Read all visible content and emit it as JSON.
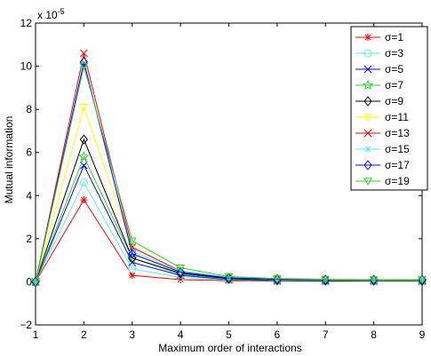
{
  "chart_data": {
    "type": "line",
    "xlabel": "Maximum order of interactions",
    "ylabel": "Mutual information",
    "exponent_label": "x 10",
    "exponent_power": "-5",
    "x": [
      1,
      2,
      3,
      4,
      5,
      6,
      7,
      8,
      9
    ],
    "xlim": [
      1,
      9
    ],
    "ylim": [
      -2,
      12
    ],
    "xticks": [
      "1",
      "2",
      "3",
      "4",
      "5",
      "6",
      "7",
      "8",
      "9"
    ],
    "yticks": [
      "−2",
      "0",
      "2",
      "4",
      "6",
      "8",
      "10",
      "12"
    ],
    "ytick_values": [
      -2,
      0,
      2,
      4,
      6,
      8,
      10,
      12
    ],
    "legend_placement": "top-right",
    "grid": false,
    "series": [
      {
        "name": "σ=1",
        "color": "#ff0000",
        "marker": "asterisk",
        "values": [
          0,
          3.8,
          0.3,
          0.1,
          0.05,
          0.03,
          0.02,
          0.02,
          0.02
        ]
      },
      {
        "name": "σ=3",
        "color": "#66e6e6",
        "marker": "circle",
        "values": [
          0,
          4.6,
          0.6,
          0.2,
          0.08,
          0.04,
          0.03,
          0.03,
          0.03
        ]
      },
      {
        "name": "σ=5",
        "color": "#0000ff",
        "marker": "x",
        "values": [
          0,
          5.4,
          0.9,
          0.3,
          0.1,
          0.05,
          0.04,
          0.04,
          0.04
        ]
      },
      {
        "name": "σ=7",
        "color": "#33cc33",
        "marker": "star",
        "values": [
          0,
          5.8,
          1.1,
          0.35,
          0.12,
          0.06,
          0.05,
          0.05,
          0.05
        ]
      },
      {
        "name": "σ=9",
        "color": "#000000",
        "marker": "diamond",
        "values": [
          0,
          6.6,
          1.1,
          0.4,
          0.15,
          0.08,
          0.06,
          0.06,
          0.06
        ]
      },
      {
        "name": "σ=11",
        "color": "#ffff00",
        "marker": "triangle-down",
        "values": [
          0,
          8.1,
          1.6,
          0.5,
          0.2,
          0.1,
          0.08,
          0.07,
          0.07
        ]
      },
      {
        "name": "σ=13",
        "color": "#ff0000",
        "marker": "x",
        "values": [
          0,
          10.6,
          1.6,
          0.5,
          0.2,
          0.12,
          0.1,
          0.09,
          0.09
        ]
      },
      {
        "name": "σ=15",
        "color": "#66e6e6",
        "marker": "asterisk",
        "values": [
          0,
          10.1,
          1.4,
          0.5,
          0.2,
          0.12,
          0.1,
          0.09,
          0.09
        ]
      },
      {
        "name": "σ=17",
        "color": "#0000ff",
        "marker": "diamond",
        "values": [
          0,
          10.2,
          1.3,
          0.45,
          0.18,
          0.12,
          0.1,
          0.09,
          0.09
        ]
      },
      {
        "name": "σ=19",
        "color": "#33cc33",
        "marker": "triangle-down",
        "values": [
          0,
          10.0,
          1.9,
          0.65,
          0.25,
          0.15,
          0.12,
          0.1,
          0.1
        ]
      }
    ]
  }
}
